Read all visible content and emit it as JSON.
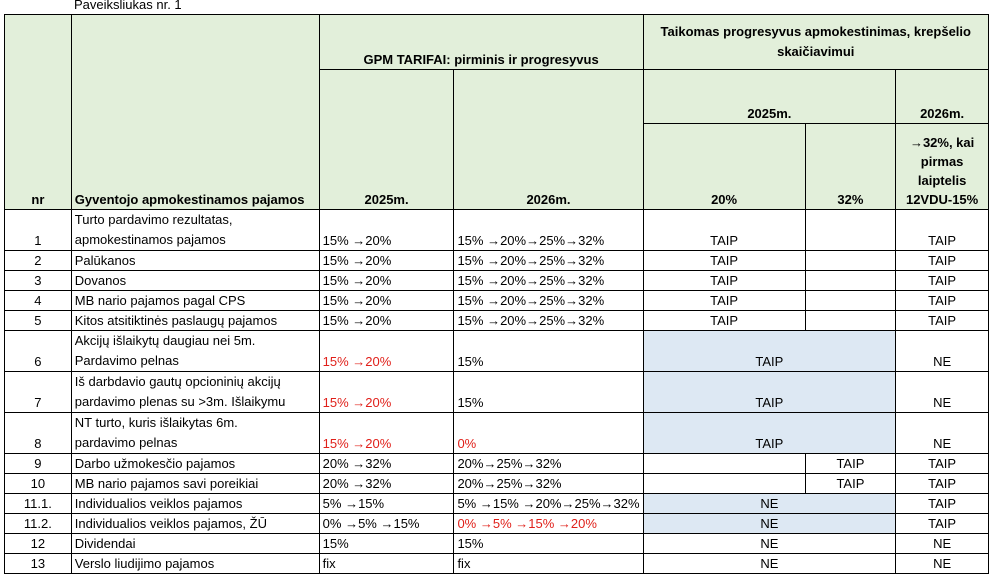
{
  "caption": "Paveiksliukas nr. 1",
  "headers": {
    "nr": "nr",
    "income": "Gyventojo apmokestinamos pajamos",
    "gpm_group": "GPM TARIFAI: pirminis ir progresyvus",
    "progressive_group": "Taikomas progresyvus apmokestinimas, krepšelio skaičiavimui",
    "y2025": "2025m.",
    "y2026": "2026m.",
    "p2025": "2025m.",
    "p2026": "2026m.",
    "p20": "20%",
    "p32": "32%",
    "p2026_note": "→32%, kai pirmas laiptelis 12VDU-15%"
  },
  "rows": [
    {
      "nr": "1",
      "income_l1": "Turto pardavimo rezultatas,",
      "income_l2": "apmokestinamos pajamos",
      "r2025": "15% →20%",
      "r2026": "15% →20%→25%→32%",
      "p20": "TAIP",
      "p32": "",
      "p2026": "TAIP"
    },
    {
      "nr": "2",
      "income": "Palūkanos",
      "r2025": "15% →20%",
      "r2026": "15% →20%→25%→32%",
      "p20": "TAIP",
      "p32": "",
      "p2026": "TAIP"
    },
    {
      "nr": "3",
      "income": "Dovanos",
      "r2025": "15% →20%",
      "r2026": "15% →20%→25%→32%",
      "p20": "TAIP",
      "p32": "",
      "p2026": "TAIP"
    },
    {
      "nr": "4",
      "income": "MB nario pajamos pagal CPS",
      "r2025": "15% →20%",
      "r2026": "15% →20%→25%→32%",
      "p20": "TAIP",
      "p32": "",
      "p2026": "TAIP"
    },
    {
      "nr": "5",
      "income": "Kitos atsitiktinės paslaugų pajamos",
      "r2025": "15% →20%",
      "r2026": "15% →20%→25%→32%",
      "p20": "TAIP",
      "p32": "",
      "p2026": "TAIP"
    },
    {
      "nr": "6",
      "income_l1": "Akcijų išlaikytų daugiau nei 5m.",
      "income_l2": "Pardavimo pelnas",
      "r2025": "15% →20%",
      "r2026": "15%",
      "p20": "TAIP",
      "p32": "",
      "p2026": "NE"
    },
    {
      "nr": "7",
      "income_l1": "Iš darbdavio gautų opcioninių akcijų",
      "income_l2": "pardavimo plenas su >3m. Išlaikymu",
      "r2025": "15% →20%",
      "r2026": "15%",
      "p20": "TAIP",
      "p32": "",
      "p2026": "NE"
    },
    {
      "nr": "8",
      "income_l1": "NT turto, kuris išlaikytas 6m.",
      "income_l2": "pardavimo pelnas",
      "r2025": "15% →20%",
      "r2026": "0%",
      "p20": "TAIP",
      "p32": "",
      "p2026": "NE"
    },
    {
      "nr": "9",
      "income": "Darbo užmokesčio pajamos",
      "r2025": "20% →32%",
      "r2026": "20%→25%→32%",
      "p20": "",
      "p32": "TAIP",
      "p2026": "TAIP"
    },
    {
      "nr": "10",
      "income": "MB nario pajamos savi poreikiai",
      "r2025": "20% →32%",
      "r2026": "20%→25%→32%",
      "p20": "",
      "p32": "TAIP",
      "p2026": "TAIP"
    },
    {
      "nr": "11.1.",
      "income": "Individualios veiklos pajamos",
      "r2025": "5% →15%",
      "r2026": "5% →15% →20%→25%→32%",
      "p20": "NE",
      "p32": "",
      "p2026": "TAIP"
    },
    {
      "nr": "11.2.",
      "income": "Individualios veiklos pajamos, ŽŪ",
      "r2025": "0% →5% →15%",
      "r2026": "0% →5% →15% →20%",
      "p20": "NE",
      "p32": "",
      "p2026": "TAIP"
    },
    {
      "nr": "12",
      "income": "Dividendai",
      "r2025": "15%",
      "r2026": "15%",
      "p20": "NE",
      "p32": "",
      "p2026": "NE"
    },
    {
      "nr": "13",
      "income": "Verslo liudijimo pajamos",
      "r2025": "fix",
      "r2026": "fix",
      "p20": "NE",
      "p32": "",
      "p2026": "NE"
    }
  ],
  "colors": {
    "header_bg": "#e2efda",
    "highlight_bg": "#dde8f3",
    "red_text": "#e0201a"
  }
}
